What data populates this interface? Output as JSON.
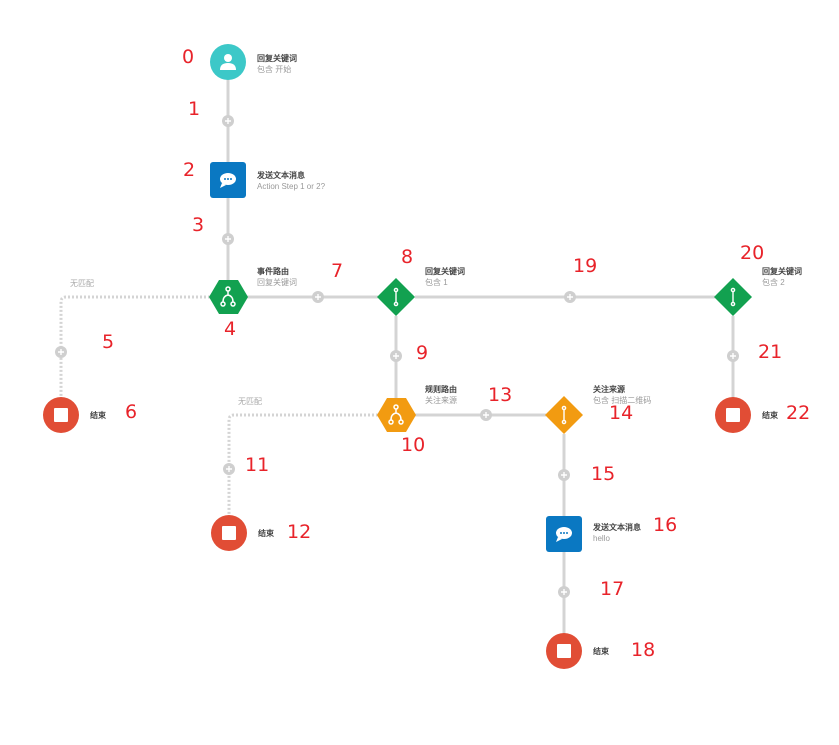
{
  "colors": {
    "line": "#d4d4d4",
    "plus": "#cfcfcf",
    "start": "#3cc8c8",
    "send": "#0a78c2",
    "event": "#12a150",
    "keyword": "#12a150",
    "rule": "#f29b11",
    "end": "#e14d35",
    "number": "#e8232a"
  },
  "icons": {
    "start": "user-icon",
    "send": "chat-bubble-icon",
    "router": "fork-icon",
    "condition": "switch-icon",
    "end": "stop-icon",
    "add": "plus-icon"
  },
  "nodes": {
    "start": {
      "title": "回复关键词",
      "subtitle": "包含 开始"
    },
    "send1": {
      "title": "发送文本消息",
      "subtitle": "Action Step 1 or 2?"
    },
    "event_router": {
      "title": "事件路由",
      "subtitle": "回复关键词"
    },
    "kw1": {
      "title": "回复关键词",
      "subtitle": "包含 1"
    },
    "kw2": {
      "title": "回复关键词",
      "subtitle": "包含 2"
    },
    "rule_router": {
      "title": "规则路由",
      "subtitle": "关注来源"
    },
    "source": {
      "title": "关注来源",
      "subtitle": "包含 扫描二维码"
    },
    "send2": {
      "title": "发送文本消息",
      "subtitle": "hello"
    },
    "end1": {
      "title": "结束"
    },
    "end2": {
      "title": "结束"
    },
    "end3": {
      "title": "结束"
    },
    "end4": {
      "title": "结束"
    }
  },
  "no_match_label": "无匹配",
  "numbers": [
    "0",
    "1",
    "2",
    "3",
    "4",
    "5",
    "6",
    "7",
    "8",
    "9",
    "10",
    "11",
    "12",
    "13",
    "14",
    "15",
    "16",
    "17",
    "18",
    "19",
    "20",
    "21",
    "22"
  ]
}
